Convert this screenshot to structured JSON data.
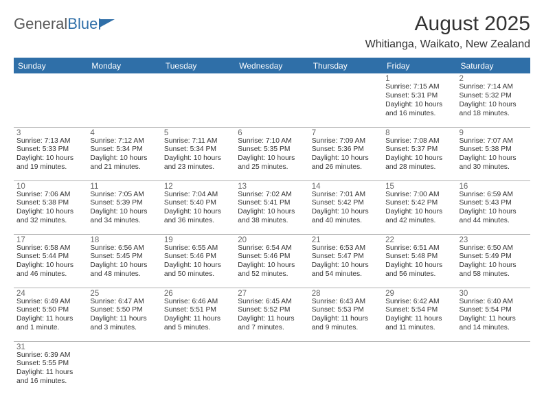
{
  "logo": {
    "text_dark": "General",
    "text_blue": "Blue"
  },
  "title": "August 2025",
  "location": "Whitianga, Waikato, New Zealand",
  "colors": {
    "header_bg": "#2f6fa8",
    "header_text": "#ffffff",
    "divider": "#b0b0b0",
    "body_text": "#333333"
  },
  "day_headers": [
    "Sunday",
    "Monday",
    "Tuesday",
    "Wednesday",
    "Thursday",
    "Friday",
    "Saturday"
  ],
  "weeks": [
    [
      null,
      null,
      null,
      null,
      null,
      {
        "n": "1",
        "sr": "7:15 AM",
        "ss": "5:31 PM",
        "dl": "10 hours and 16 minutes."
      },
      {
        "n": "2",
        "sr": "7:14 AM",
        "ss": "5:32 PM",
        "dl": "10 hours and 18 minutes."
      }
    ],
    [
      {
        "n": "3",
        "sr": "7:13 AM",
        "ss": "5:33 PM",
        "dl": "10 hours and 19 minutes."
      },
      {
        "n": "4",
        "sr": "7:12 AM",
        "ss": "5:34 PM",
        "dl": "10 hours and 21 minutes."
      },
      {
        "n": "5",
        "sr": "7:11 AM",
        "ss": "5:34 PM",
        "dl": "10 hours and 23 minutes."
      },
      {
        "n": "6",
        "sr": "7:10 AM",
        "ss": "5:35 PM",
        "dl": "10 hours and 25 minutes."
      },
      {
        "n": "7",
        "sr": "7:09 AM",
        "ss": "5:36 PM",
        "dl": "10 hours and 26 minutes."
      },
      {
        "n": "8",
        "sr": "7:08 AM",
        "ss": "5:37 PM",
        "dl": "10 hours and 28 minutes."
      },
      {
        "n": "9",
        "sr": "7:07 AM",
        "ss": "5:38 PM",
        "dl": "10 hours and 30 minutes."
      }
    ],
    [
      {
        "n": "10",
        "sr": "7:06 AM",
        "ss": "5:38 PM",
        "dl": "10 hours and 32 minutes."
      },
      {
        "n": "11",
        "sr": "7:05 AM",
        "ss": "5:39 PM",
        "dl": "10 hours and 34 minutes."
      },
      {
        "n": "12",
        "sr": "7:04 AM",
        "ss": "5:40 PM",
        "dl": "10 hours and 36 minutes."
      },
      {
        "n": "13",
        "sr": "7:02 AM",
        "ss": "5:41 PM",
        "dl": "10 hours and 38 minutes."
      },
      {
        "n": "14",
        "sr": "7:01 AM",
        "ss": "5:42 PM",
        "dl": "10 hours and 40 minutes."
      },
      {
        "n": "15",
        "sr": "7:00 AM",
        "ss": "5:42 PM",
        "dl": "10 hours and 42 minutes."
      },
      {
        "n": "16",
        "sr": "6:59 AM",
        "ss": "5:43 PM",
        "dl": "10 hours and 44 minutes."
      }
    ],
    [
      {
        "n": "17",
        "sr": "6:58 AM",
        "ss": "5:44 PM",
        "dl": "10 hours and 46 minutes."
      },
      {
        "n": "18",
        "sr": "6:56 AM",
        "ss": "5:45 PM",
        "dl": "10 hours and 48 minutes."
      },
      {
        "n": "19",
        "sr": "6:55 AM",
        "ss": "5:46 PM",
        "dl": "10 hours and 50 minutes."
      },
      {
        "n": "20",
        "sr": "6:54 AM",
        "ss": "5:46 PM",
        "dl": "10 hours and 52 minutes."
      },
      {
        "n": "21",
        "sr": "6:53 AM",
        "ss": "5:47 PM",
        "dl": "10 hours and 54 minutes."
      },
      {
        "n": "22",
        "sr": "6:51 AM",
        "ss": "5:48 PM",
        "dl": "10 hours and 56 minutes."
      },
      {
        "n": "23",
        "sr": "6:50 AM",
        "ss": "5:49 PM",
        "dl": "10 hours and 58 minutes."
      }
    ],
    [
      {
        "n": "24",
        "sr": "6:49 AM",
        "ss": "5:50 PM",
        "dl": "11 hours and 1 minute."
      },
      {
        "n": "25",
        "sr": "6:47 AM",
        "ss": "5:50 PM",
        "dl": "11 hours and 3 minutes."
      },
      {
        "n": "26",
        "sr": "6:46 AM",
        "ss": "5:51 PM",
        "dl": "11 hours and 5 minutes."
      },
      {
        "n": "27",
        "sr": "6:45 AM",
        "ss": "5:52 PM",
        "dl": "11 hours and 7 minutes."
      },
      {
        "n": "28",
        "sr": "6:43 AM",
        "ss": "5:53 PM",
        "dl": "11 hours and 9 minutes."
      },
      {
        "n": "29",
        "sr": "6:42 AM",
        "ss": "5:54 PM",
        "dl": "11 hours and 11 minutes."
      },
      {
        "n": "30",
        "sr": "6:40 AM",
        "ss": "5:54 PM",
        "dl": "11 hours and 14 minutes."
      }
    ],
    [
      {
        "n": "31",
        "sr": "6:39 AM",
        "ss": "5:55 PM",
        "dl": "11 hours and 16 minutes."
      },
      null,
      null,
      null,
      null,
      null,
      null
    ]
  ],
  "labels": {
    "sunrise": "Sunrise:",
    "sunset": "Sunset:",
    "daylight": "Daylight:"
  }
}
